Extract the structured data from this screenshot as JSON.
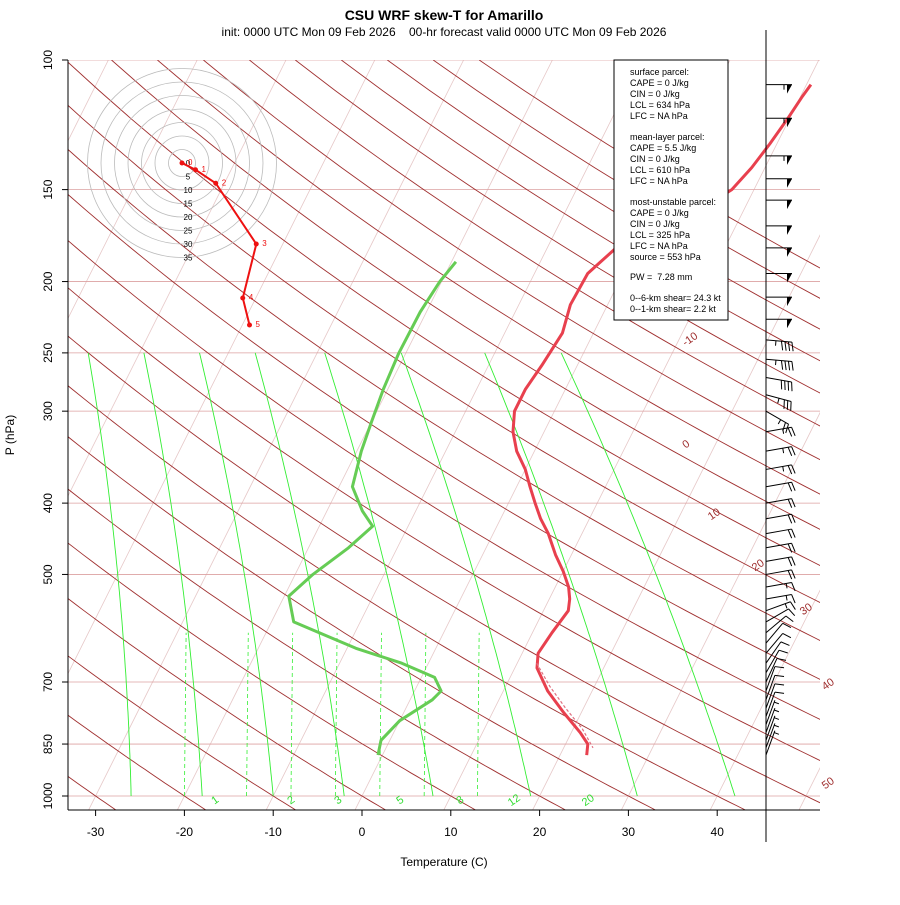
{
  "chart_data": {
    "type": "line",
    "title": "CSU WRF skew-T for Amarillo",
    "subtitle": "init: 0000 UTC Mon 09 Feb 2026    00-hr forecast valid 0000 UTC Mon 09 Feb 2026",
    "xlabel": "Temperature (C)",
    "ylabel": "P (hPa)",
    "x_ticks": [
      -30,
      -20,
      -10,
      0,
      10,
      20,
      30,
      40
    ],
    "y_ticks": [
      100,
      150,
      200,
      250,
      300,
      400,
      500,
      700,
      850,
      1000
    ],
    "xlim": [
      -33,
      45
    ],
    "ylim": [
      1050,
      100
    ],
    "y_scale": "log",
    "grid": true,
    "dry_adiabat_labels": [
      "-10",
      "0",
      "10",
      "20",
      "30",
      "40",
      "50"
    ],
    "mixing_ratio_labels": [
      "1",
      "2",
      "3",
      "5",
      "8",
      "12",
      "20"
    ],
    "series": [
      {
        "color": "#e8404e",
        "points": [
          [
            10.5,
            108
          ],
          [
            10.2,
            112
          ],
          [
            9.8,
            120
          ],
          [
            9.2,
            130
          ],
          [
            8.5,
            140
          ],
          [
            7.5,
            150
          ],
          [
            6.5,
            154
          ],
          [
            3,
            164
          ],
          [
            -2,
            178
          ],
          [
            -3.2,
            188
          ],
          [
            -4,
            195
          ],
          [
            -4.2,
            215
          ],
          [
            -3.5,
            235
          ],
          [
            -4,
            260
          ],
          [
            -4.5,
            280
          ],
          [
            -4.5,
            300
          ],
          [
            -3.5,
            320
          ],
          [
            -2,
            340
          ],
          [
            0,
            360
          ],
          [
            1.5,
            380
          ],
          [
            3,
            400
          ],
          [
            4.5,
            420
          ],
          [
            6.2,
            440
          ],
          [
            8.2,
            470
          ],
          [
            10,
            495
          ],
          [
            11.5,
            520
          ],
          [
            12.3,
            540
          ],
          [
            12.8,
            560
          ],
          [
            12.2,
            600
          ],
          [
            11.8,
            640
          ],
          [
            12.5,
            670
          ],
          [
            15,
            720
          ],
          [
            18,
            770
          ],
          [
            21,
            820
          ],
          [
            22.5,
            850
          ],
          [
            23,
            880
          ]
        ]
      },
      {
        "color": "#66cc55",
        "points": [
          [
            -19.5,
            188
          ],
          [
            -20.2,
            200
          ],
          [
            -20.7,
            220
          ],
          [
            -20.8,
            250
          ],
          [
            -20.5,
            280
          ],
          [
            -20,
            310
          ],
          [
            -19.5,
            340
          ],
          [
            -18.5,
            380
          ],
          [
            -16,
            410
          ],
          [
            -14,
            430
          ],
          [
            -15.5,
            460
          ],
          [
            -18,
            500
          ],
          [
            -19.5,
            535
          ],
          [
            -17.5,
            580
          ],
          [
            -9,
            630
          ],
          [
            -3,
            660
          ],
          [
            1.5,
            690
          ],
          [
            3,
            720
          ],
          [
            2.5,
            740
          ],
          [
            0,
            790
          ],
          [
            -1,
            840
          ],
          [
            -0.5,
            880
          ]
        ]
      },
      {
        "color": "#e07080",
        "dashed": true,
        "points": [
          [
            12.2,
            660
          ],
          [
            15,
            710
          ],
          [
            18,
            760
          ],
          [
            21,
            810
          ],
          [
            23.3,
            860
          ]
        ]
      }
    ]
  },
  "hodograph": {
    "ring_labels": [
      "0",
      "5",
      "10",
      "15",
      "20",
      "25",
      "30",
      "35"
    ],
    "ring_step_kt": 5,
    "point_labels": [
      "0",
      "1",
      "2",
      "3",
      "4",
      "5"
    ],
    "points": [
      [
        0,
        0
      ],
      [
        1,
        0.5
      ],
      [
        2.5,
        1.5
      ],
      [
        5.5,
        6
      ],
      [
        4.5,
        10
      ],
      [
        5,
        12
      ]
    ]
  },
  "wind_barbs": {
    "levels": [
      {
        "p": 108,
        "speed": 55,
        "dir": 270
      },
      {
        "p": 120,
        "speed": 55,
        "dir": 270
      },
      {
        "p": 135,
        "speed": 55,
        "dir": 270
      },
      {
        "p": 145,
        "speed": 50,
        "dir": 270
      },
      {
        "p": 155,
        "speed": 50,
        "dir": 270
      },
      {
        "p": 168,
        "speed": 50,
        "dir": 270
      },
      {
        "p": 180,
        "speed": 50,
        "dir": 270
      },
      {
        "p": 195,
        "speed": 50,
        "dir": 270
      },
      {
        "p": 210,
        "speed": 50,
        "dir": 270
      },
      {
        "p": 225,
        "speed": 50,
        "dir": 270
      },
      {
        "p": 240,
        "speed": 45,
        "dir": 275
      },
      {
        "p": 255,
        "speed": 45,
        "dir": 275
      },
      {
        "p": 270,
        "speed": 40,
        "dir": 280
      },
      {
        "p": 285,
        "speed": 35,
        "dir": 285
      },
      {
        "p": 300,
        "speed": 25,
        "dir": 300
      },
      {
        "p": 320,
        "speed": 25,
        "dir": 260
      },
      {
        "p": 340,
        "speed": 25,
        "dir": 260
      },
      {
        "p": 360,
        "speed": 25,
        "dir": 260
      },
      {
        "p": 380,
        "speed": 20,
        "dir": 260
      },
      {
        "p": 400,
        "speed": 20,
        "dir": 260
      },
      {
        "p": 420,
        "speed": 20,
        "dir": 260
      },
      {
        "p": 440,
        "speed": 20,
        "dir": 260
      },
      {
        "p": 460,
        "speed": 20,
        "dir": 260
      },
      {
        "p": 480,
        "speed": 20,
        "dir": 260
      },
      {
        "p": 500,
        "speed": 20,
        "dir": 260
      },
      {
        "p": 520,
        "speed": 15,
        "dir": 260
      },
      {
        "p": 540,
        "speed": 15,
        "dir": 260
      },
      {
        "p": 560,
        "speed": 15,
        "dir": 250
      },
      {
        "p": 580,
        "speed": 10,
        "dir": 240
      },
      {
        "p": 600,
        "speed": 10,
        "dir": 230
      },
      {
        "p": 620,
        "speed": 10,
        "dir": 220
      },
      {
        "p": 640,
        "speed": 10,
        "dir": 220
      },
      {
        "p": 660,
        "speed": 10,
        "dir": 215
      },
      {
        "p": 680,
        "speed": 10,
        "dir": 210
      },
      {
        "p": 700,
        "speed": 10,
        "dir": 205
      },
      {
        "p": 720,
        "speed": 10,
        "dir": 200
      },
      {
        "p": 740,
        "speed": 10,
        "dir": 200
      },
      {
        "p": 760,
        "speed": 10,
        "dir": 200
      },
      {
        "p": 780,
        "speed": 10,
        "dir": 200
      },
      {
        "p": 800,
        "speed": 5,
        "dir": 200
      },
      {
        "p": 820,
        "speed": 5,
        "dir": 200
      },
      {
        "p": 840,
        "speed": 5,
        "dir": 200
      },
      {
        "p": 860,
        "speed": 5,
        "dir": 200
      },
      {
        "p": 880,
        "speed": 5,
        "dir": 200
      }
    ]
  },
  "indices": {
    "surface_head": "surface parcel:",
    "surface_cape": "CAPE = 0 J/kg",
    "surface_cin": "CIN = 0 J/kg",
    "surface_lcl": "LCL = 634 hPa",
    "surface_lfc": "LFC = NA hPa",
    "ml_head": "mean-layer parcel:",
    "ml_cape": "CAPE = 5.5 J/kg",
    "ml_cin": "CIN = 0 J/kg",
    "ml_lcl": "LCL = 610 hPa",
    "ml_lfc": "LFC = NA hPa",
    "mu_head": "most-unstable parcel:",
    "mu_cape": "CAPE = 0 J/kg",
    "mu_cin": "CIN = 0 J/kg",
    "mu_lcl": "LCL = 325 hPa",
    "mu_lfc": "LFC = NA hPa",
    "mu_source": "source = 553 hPa",
    "pw": "PW =  7.28 mm",
    "shear_06": "0--6-km shear= 24.3 kt",
    "shear_01": "0--1-km shear= 2.2 kt"
  },
  "colors": {
    "temperature": "#e8404e",
    "dewpoint": "#66cc55",
    "dry_adiabat": "#a03030",
    "mixing_ratio": "#33ee33",
    "isobar": "#dca0a0",
    "isotherm": "#e6c8c8"
  }
}
